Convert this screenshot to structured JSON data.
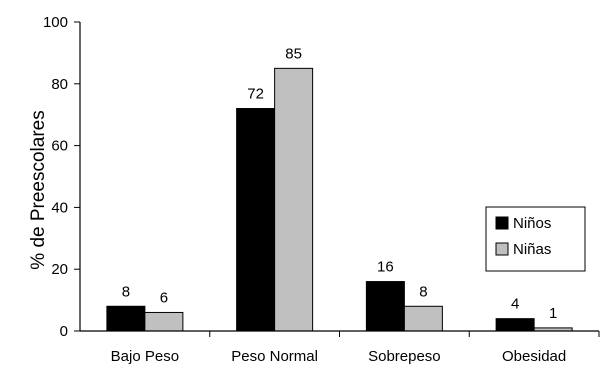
{
  "chart_data": {
    "type": "bar",
    "title": "",
    "xlabel": "",
    "ylabel": "% de Preescolares",
    "ylim": [
      0,
      100
    ],
    "yticks": [
      0,
      20,
      40,
      60,
      80,
      100
    ],
    "grid": false,
    "legend_position": "right",
    "categories": [
      "Bajo Peso",
      "Peso Normal",
      "Sobrepeso",
      "Obesidad"
    ],
    "series": [
      {
        "name": "Niños",
        "color": "#000000",
        "values": [
          8,
          72,
          16,
          4
        ]
      },
      {
        "name": "Niñas",
        "color": "#c0c0c0",
        "values": [
          6,
          85,
          8,
          1
        ]
      }
    ]
  }
}
